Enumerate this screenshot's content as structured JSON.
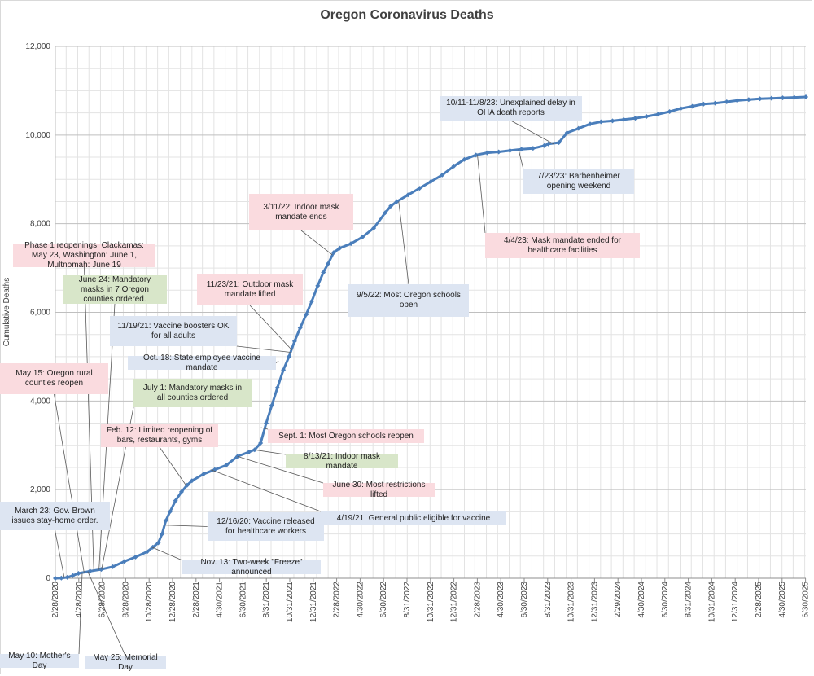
{
  "chart_data": {
    "type": "line",
    "title": "Oregon Coronavirus Deaths",
    "xlabel": "",
    "ylabel": "Cumulative Deaths",
    "ylim": [
      0,
      12000
    ],
    "yticks": [
      "0",
      "2,000",
      "4,000",
      "6,000",
      "8,000",
      "10,000",
      "12,000"
    ],
    "xticks": [
      "2/28/2020",
      "4/28/2020",
      "6/28/2020",
      "8/28/2020",
      "10/28/2020",
      "12/28/2020",
      "2/28/2021",
      "4/30/2021",
      "6/30/2021",
      "8/31/2021",
      "10/31/2021",
      "12/31/2021",
      "2/28/2022",
      "4/30/2022",
      "6/30/2022",
      "8/31/2022",
      "10/31/2022",
      "12/31/2022",
      "2/28/2023",
      "4/30/2023",
      "6/30/2023",
      "8/31/2023",
      "10/31/2023",
      "12/31/2023",
      "2/29/2024",
      "4/30/2024",
      "6/30/2024",
      "8/31/2024",
      "10/31/2024",
      "12/31/2024",
      "2/28/2025",
      "4/30/2025",
      "6/30/2025"
    ],
    "grid": true,
    "series": [
      {
        "color": "#4a7ebb",
        "x": [
          "2020-02-28",
          "2020-03-15",
          "2020-03-31",
          "2020-04-15",
          "2020-04-30",
          "2020-05-31",
          "2020-06-30",
          "2020-07-31",
          "2020-08-31",
          "2020-09-30",
          "2020-10-31",
          "2020-11-15",
          "2020-11-30",
          "2020-12-10",
          "2020-12-20",
          "2020-12-31",
          "2021-01-15",
          "2021-01-31",
          "2021-02-15",
          "2021-02-28",
          "2021-03-31",
          "2021-04-30",
          "2021-05-31",
          "2021-06-30",
          "2021-07-31",
          "2021-08-15",
          "2021-08-31",
          "2021-09-15",
          "2021-09-30",
          "2021-10-15",
          "2021-10-31",
          "2021-11-15",
          "2021-11-30",
          "2021-12-15",
          "2021-12-31",
          "2022-01-15",
          "2022-01-31",
          "2022-02-15",
          "2022-02-28",
          "2022-03-15",
          "2022-03-31",
          "2022-04-30",
          "2022-05-31",
          "2022-06-30",
          "2022-07-31",
          "2022-08-15",
          "2022-08-31",
          "2022-09-30",
          "2022-10-31",
          "2022-11-30",
          "2022-12-31",
          "2023-01-31",
          "2023-02-28",
          "2023-03-31",
          "2023-04-30",
          "2023-05-31",
          "2023-06-30",
          "2023-07-31",
          "2023-08-31",
          "2023-09-30",
          "2023-10-11",
          "2023-11-08",
          "2023-11-30",
          "2023-12-31",
          "2024-01-31",
          "2024-02-29",
          "2024-03-31",
          "2024-04-30",
          "2024-05-31",
          "2024-06-30",
          "2024-07-31",
          "2024-08-31",
          "2024-09-30",
          "2024-10-31",
          "2024-11-30",
          "2024-12-31",
          "2025-01-31",
          "2025-02-28",
          "2025-03-31",
          "2025-04-30",
          "2025-05-31",
          "2025-06-30",
          "2025-07-31",
          "2025-08-31"
        ],
        "values": [
          0,
          5,
          20,
          60,
          110,
          160,
          200,
          260,
          380,
          480,
          600,
          700,
          800,
          1000,
          1300,
          1500,
          1750,
          1950,
          2100,
          2200,
          2350,
          2450,
          2550,
          2750,
          2850,
          2900,
          3050,
          3500,
          3900,
          4300,
          4700,
          5000,
          5350,
          5650,
          5950,
          6250,
          6600,
          6900,
          7100,
          7350,
          7450,
          7550,
          7700,
          7900,
          8250,
          8400,
          8500,
          8650,
          8800,
          8950,
          9100,
          9300,
          9450,
          9550,
          9600,
          9620,
          9650,
          9680,
          9700,
          9760,
          9800,
          9830,
          10050,
          10150,
          10250,
          10300,
          10320,
          10350,
          10380,
          10420,
          10470,
          10530,
          10600,
          10650,
          10700,
          10720,
          10750,
          10780,
          10800,
          10820,
          10830,
          10840,
          10850,
          10860
        ]
      }
    ],
    "annotations": [
      {
        "text": "March 23: Gov. Brown issues stay-home order.",
        "color": "blue",
        "date": "2020-03-23",
        "value": 10
      },
      {
        "text": "May 10: Mother's Day",
        "color": "blue",
        "date": "2020-05-10",
        "value": 130
      },
      {
        "text": "May 15: Oregon rural counties reopen",
        "color": "pink",
        "date": "2020-05-15",
        "value": 135
      },
      {
        "text": "May 25: Memorial Day",
        "color": "blue",
        "date": "2020-05-25",
        "value": 150
      },
      {
        "text": "Phase 1 reopenings: Clackamas: May 23, Washington: June 1, Multnomah: June 19",
        "color": "pink",
        "date": "2020-06-10",
        "value": 180
      },
      {
        "text": "June 24: Mandatory masks in 7 Oregon counties ordered.",
        "color": "green",
        "date": "2020-06-24",
        "value": 195
      },
      {
        "text": "July 1: Mandatory masks in all counties ordered",
        "color": "green",
        "date": "2020-07-01",
        "value": 200
      },
      {
        "text": "Nov. 13: Two-week \"Freeze\" announced",
        "color": "blue",
        "date": "2020-11-13",
        "value": 700
      },
      {
        "text": "12/16/20: Vaccine released for healthcare workers",
        "color": "blue",
        "date": "2020-12-16",
        "value": 1200
      },
      {
        "text": "Feb. 12: Limited reopening of bars, restaurants, gyms",
        "color": "pink",
        "date": "2021-02-12",
        "value": 2100
      },
      {
        "text": "4/19/21: General public eligible for vaccine",
        "color": "blue",
        "date": "2021-04-19",
        "value": 2450
      },
      {
        "text": "June 30: Most restrictions lifted",
        "color": "pink",
        "date": "2021-06-30",
        "value": 2750
      },
      {
        "text": "8/13/21: Indoor mask mandate",
        "color": "green",
        "date": "2021-08-13",
        "value": 2900
      },
      {
        "text": "Sept. 1: Most Oregon schools reopen",
        "color": "pink",
        "date": "2021-09-01",
        "value": 3400
      },
      {
        "text": "Oct. 18: State employee vaccine mandate",
        "color": "blue",
        "date": "2021-10-18",
        "value": 4900
      },
      {
        "text": "11/19/21: Vaccine boosters OK for all adults",
        "color": "blue",
        "date": "2021-11-19",
        "value": 5100
      },
      {
        "text": "11/23/21: Outdoor mask mandate lifted",
        "color": "pink",
        "date": "2021-11-23",
        "value": 5150
      },
      {
        "text": "3/11/22: Indoor mask mandate ends",
        "color": "pink",
        "date": "2022-03-11",
        "value": 7300
      },
      {
        "text": "9/5/22: Most Oregon schools open",
        "color": "blue",
        "date": "2022-09-05",
        "value": 8500
      },
      {
        "text": "4/4/23: Mask mandate ended for healthcare facilities",
        "color": "pink",
        "date": "2023-04-04",
        "value": 9550
      },
      {
        "text": "7/23/23: Barbenheimer opening weekend",
        "color": "blue",
        "date": "2023-07-23",
        "value": 9680
      },
      {
        "text": "10/11-11/8/23: Unexplained delay in OHA death reports",
        "color": "blue",
        "date": "2023-10-25",
        "value": 9800
      }
    ]
  }
}
